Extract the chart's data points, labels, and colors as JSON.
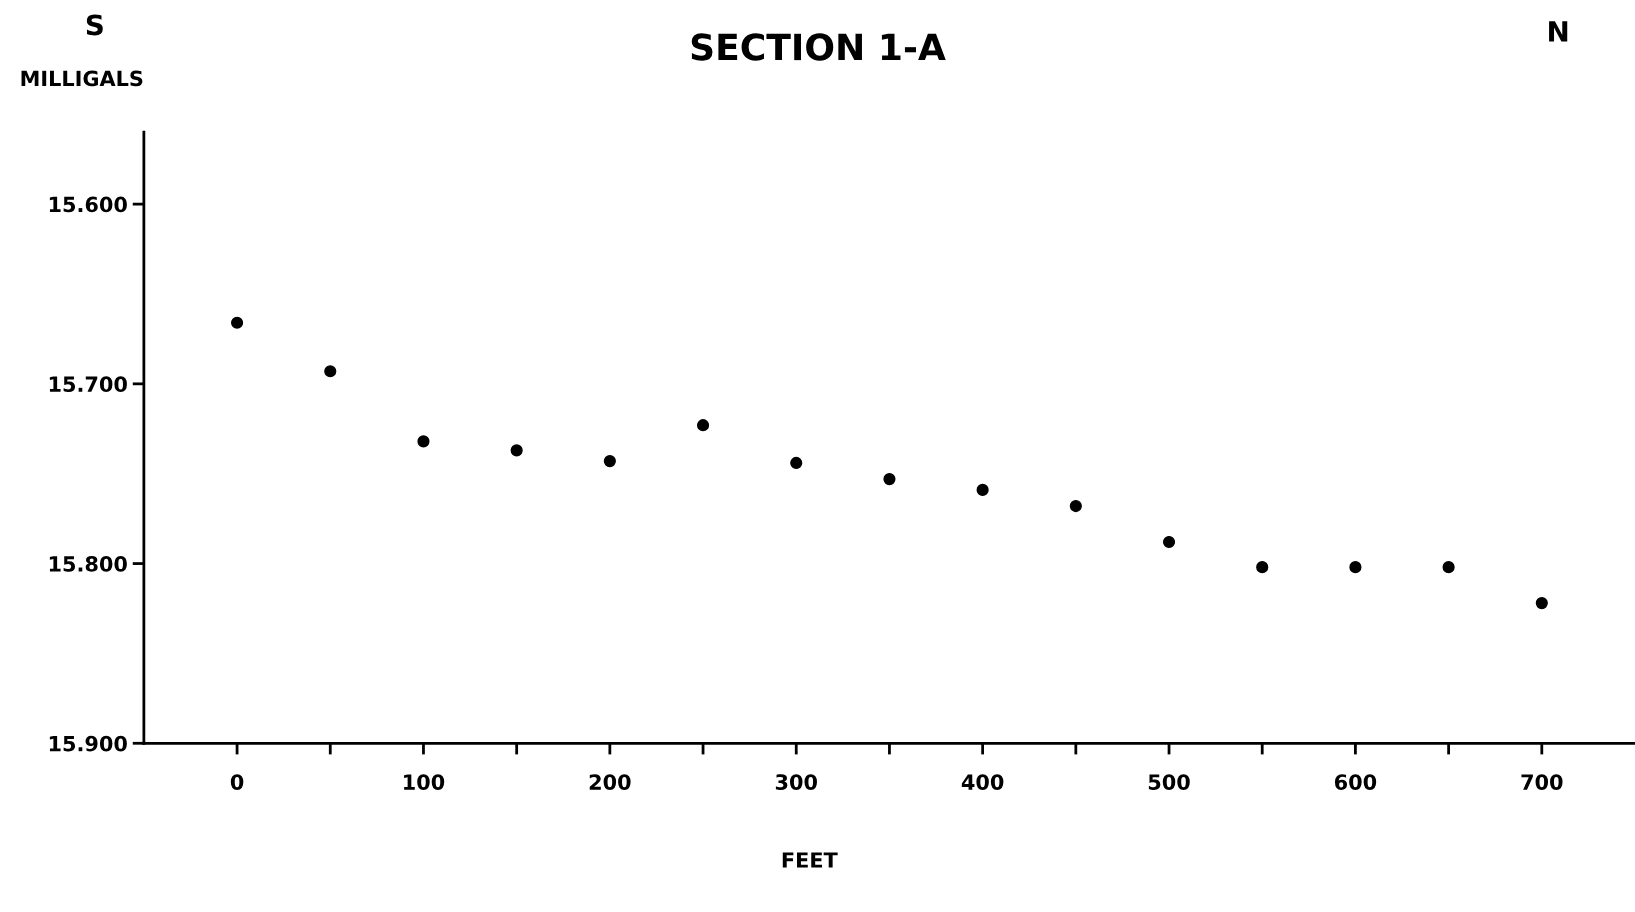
{
  "chart_data": {
    "type": "scatter",
    "title": "SECTION 1-A",
    "xlabel": "FEET",
    "ylabel": "MILLIGALS",
    "annotations": [
      "S",
      "N"
    ],
    "x": [
      0,
      50,
      100,
      150,
      200,
      250,
      300,
      350,
      400,
      450,
      500,
      550,
      600,
      650,
      700
    ],
    "series": [
      {
        "color": "#000000",
        "values": [
          15.666,
          15.693,
          15.732,
          15.737,
          15.743,
          15.723,
          15.744,
          15.753,
          15.759,
          15.768,
          15.788,
          15.802,
          15.802,
          15.802,
          15.822
        ]
      }
    ],
    "marker": "circle",
    "xlim": [
      -50,
      750
    ],
    "ylim": [
      15.9,
      15.56
    ],
    "xticks": [
      0,
      {
        "value": 50,
        "label": null
      },
      100,
      {
        "value": 150,
        "label": null
      },
      200,
      {
        "value": 250,
        "label": null
      },
      300,
      {
        "value": 350,
        "label": null
      },
      400,
      {
        "value": 450,
        "label": null
      },
      500,
      {
        "value": 550,
        "label": null
      },
      600,
      {
        "value": 650,
        "label": null
      },
      700
    ],
    "yticks": [
      {
        "value": 15.6,
        "label": "15.600"
      },
      {
        "value": 15.7,
        "label": "15.700"
      },
      {
        "value": 15.8,
        "label": "15.800"
      },
      {
        "value": 15.9,
        "label": "15.900"
      }
    ],
    "grid": false,
    "legend": false
  }
}
